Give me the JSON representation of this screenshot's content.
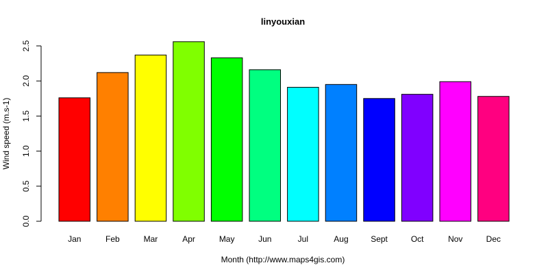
{
  "chart_data": {
    "type": "bar",
    "title": "linyouxian",
    "xlabel": "Month (http://www.maps4gis.com)",
    "ylabel": "Wind speed (m.s-1)",
    "categories": [
      "Jan",
      "Feb",
      "Mar",
      "Apr",
      "May",
      "Jun",
      "Jul",
      "Aug",
      "Sept",
      "Oct",
      "Nov",
      "Dec"
    ],
    "values": [
      1.76,
      2.12,
      2.37,
      2.56,
      2.33,
      2.16,
      1.91,
      1.95,
      1.75,
      1.81,
      1.99,
      1.78
    ],
    "colors": [
      "#FF0000",
      "#FF8000",
      "#FFFF00",
      "#80FF00",
      "#00FF00",
      "#00FF80",
      "#00FFFF",
      "#0080FF",
      "#0000FF",
      "#8000FF",
      "#FF00FF",
      "#FF0080"
    ],
    "yticks": [
      "0.0",
      "0.5",
      "1.0",
      "1.5",
      "2.0",
      "2.5"
    ],
    "ylim": [
      0,
      2.5
    ],
    "grid": false,
    "legend": "none"
  }
}
